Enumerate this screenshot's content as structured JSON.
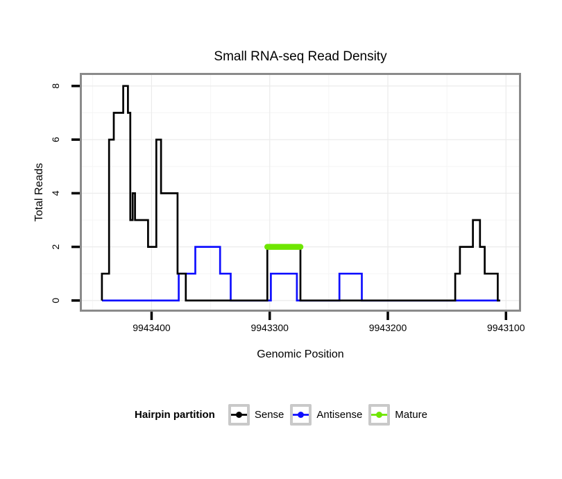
{
  "legend": {
    "title": "Hairpin partition",
    "items": [
      {
        "label": "Sense",
        "color": "#000000"
      },
      {
        "label": "Antisense",
        "color": "#0f0fff"
      },
      {
        "label": "Mature",
        "color": "#6ee600"
      }
    ]
  },
  "chart_data": {
    "type": "line",
    "subtype": "step",
    "title": "Small RNA-seq Read Density",
    "xlabel": "Genomic Position",
    "ylabel": "Total Reads",
    "x_axis": {
      "ticks": [
        9943400,
        9943300,
        9943200,
        9943100
      ],
      "reversed": true,
      "view_left": 9943459,
      "view_right": 9943089
    },
    "y_axis": {
      "ticks": [
        0,
        2,
        4,
        6,
        8
      ],
      "view_min": -0.34,
      "view_max": 8.41
    },
    "grid": {
      "x_minor": [
        9943450,
        9943350,
        9943250,
        9943150
      ],
      "y_minor": [
        1,
        3,
        5,
        7
      ],
      "major_color": "#ebebeb",
      "minor_color": "#f5f5f5"
    },
    "series": [
      {
        "name": "Antisense",
        "color": "#0f0fff",
        "width": 2.7,
        "segments": [
          [
            9943442,
            9943377,
            0
          ],
          [
            9943377,
            9943363,
            1
          ],
          [
            9943363,
            9943342,
            2
          ],
          [
            9943342,
            9943333,
            1
          ],
          [
            9943333,
            9943299,
            0
          ],
          [
            9943299,
            9943277,
            1
          ],
          [
            9943277,
            9943241,
            0
          ],
          [
            9943241,
            9943222,
            1
          ],
          [
            9943222,
            9943105,
            0
          ]
        ]
      },
      {
        "name": "Sense",
        "color": "#000000",
        "width": 2.7,
        "segments": [
          [
            9943442,
            9943442,
            0
          ],
          [
            9943442,
            9943436,
            1
          ],
          [
            9943436,
            9943432,
            6
          ],
          [
            9943432,
            9943424,
            7
          ],
          [
            9943424,
            9943420,
            8
          ],
          [
            9943420,
            9943418,
            7
          ],
          [
            9943418,
            9943416,
            3
          ],
          [
            9943416,
            9943414,
            4
          ],
          [
            9943414,
            9943403,
            3
          ],
          [
            9943403,
            9943396,
            2
          ],
          [
            9943396,
            9943392,
            6
          ],
          [
            9943392,
            9943378,
            4
          ],
          [
            9943378,
            9943371,
            1
          ],
          [
            9943371,
            9943302,
            0
          ],
          [
            9943302,
            9943274,
            2
          ],
          [
            9943274,
            9943143,
            0
          ],
          [
            9943143,
            9943139,
            1
          ],
          [
            9943139,
            9943128,
            2
          ],
          [
            9943128,
            9943122,
            3
          ],
          [
            9943122,
            9943118,
            2
          ],
          [
            9943118,
            9943107,
            1
          ],
          [
            9943107,
            9943105,
            0
          ]
        ]
      },
      {
        "name": "Mature",
        "color": "#6ee600",
        "width": 8.5,
        "linecap": "round",
        "segments": [
          [
            9943302,
            9943274,
            2
          ]
        ]
      }
    ]
  }
}
